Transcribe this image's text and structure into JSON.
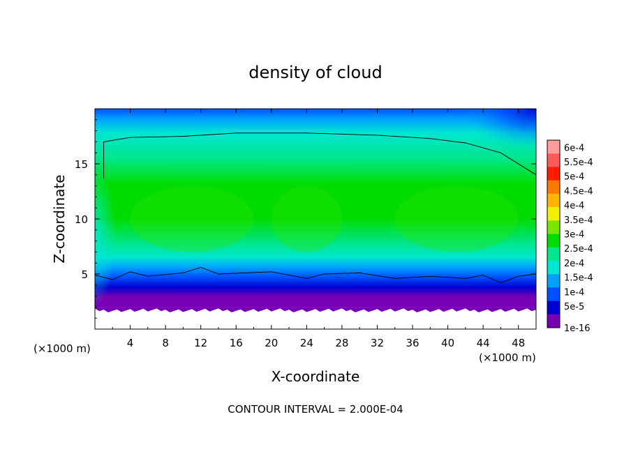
{
  "chart_data": {
    "type": "heatmap",
    "title": "density of cloud",
    "xlabel": "X-coordinate",
    "ylabel": "Z-coordinate",
    "x_unit_left": "(×1000 m)",
    "x_unit_right": "(×1000 m)",
    "footer": "CONTOUR INTERVAL = 2.000E-04",
    "xlim": [
      0,
      50
    ],
    "ylim": [
      0,
      20
    ],
    "x_ticks": [
      4,
      8,
      12,
      16,
      20,
      24,
      28,
      32,
      36,
      40,
      44,
      48
    ],
    "x_tick_labels": [
      "4",
      "8",
      "12",
      "16",
      "20",
      "24",
      "28",
      "32",
      "36",
      "40",
      "44",
      "48"
    ],
    "y_ticks": [
      5,
      10,
      15
    ],
    "y_tick_labels": [
      "5",
      "10",
      "15"
    ],
    "colorbar": {
      "labels": [
        "6e-4",
        "5.5e-4",
        "5e-4",
        "4.5e-4",
        "4e-4",
        "3.5e-4",
        "3e-4",
        "2.5e-4",
        "2e-4",
        "1.5e-4",
        "1e-4",
        "5e-5",
        "1e-16"
      ],
      "colors": [
        "#ff9c9c",
        "#ff5a5a",
        "#ff1e00",
        "#ff7800",
        "#ffb400",
        "#f0f000",
        "#78e600",
        "#00dc00",
        "#00e68c",
        "#00e6d2",
        "#00a0ff",
        "#0050ff",
        "#0000d2",
        "#7800b4"
      ]
    },
    "field": {
      "cloud_base_z": 2.0,
      "cloud_top_z": 17.8,
      "core_value": "3e-4",
      "core_z_range": [
        7,
        13
      ]
    },
    "contour_2e-4_upper": [
      [
        1,
        13.7
      ],
      [
        1,
        17.0
      ],
      [
        4,
        17.4
      ],
      [
        10,
        17.5
      ],
      [
        16,
        17.8
      ],
      [
        24,
        17.8
      ],
      [
        32,
        17.6
      ],
      [
        38,
        17.3
      ],
      [
        42,
        16.9
      ],
      [
        46,
        16.0
      ],
      [
        50,
        14.0
      ]
    ],
    "contour_2e-4_lower": [
      [
        0,
        4.9
      ],
      [
        2,
        4.5
      ],
      [
        4,
        5.2
      ],
      [
        6,
        4.8
      ],
      [
        10,
        5.1
      ],
      [
        12,
        5.6
      ],
      [
        14,
        5.0
      ],
      [
        20,
        5.2
      ],
      [
        24,
        4.6
      ],
      [
        26,
        5.0
      ],
      [
        30,
        5.1
      ],
      [
        34,
        4.6
      ],
      [
        38,
        4.8
      ],
      [
        42,
        4.6
      ],
      [
        44,
        4.9
      ],
      [
        46,
        4.2
      ],
      [
        48,
        4.8
      ],
      [
        50,
        5.0
      ]
    ]
  }
}
